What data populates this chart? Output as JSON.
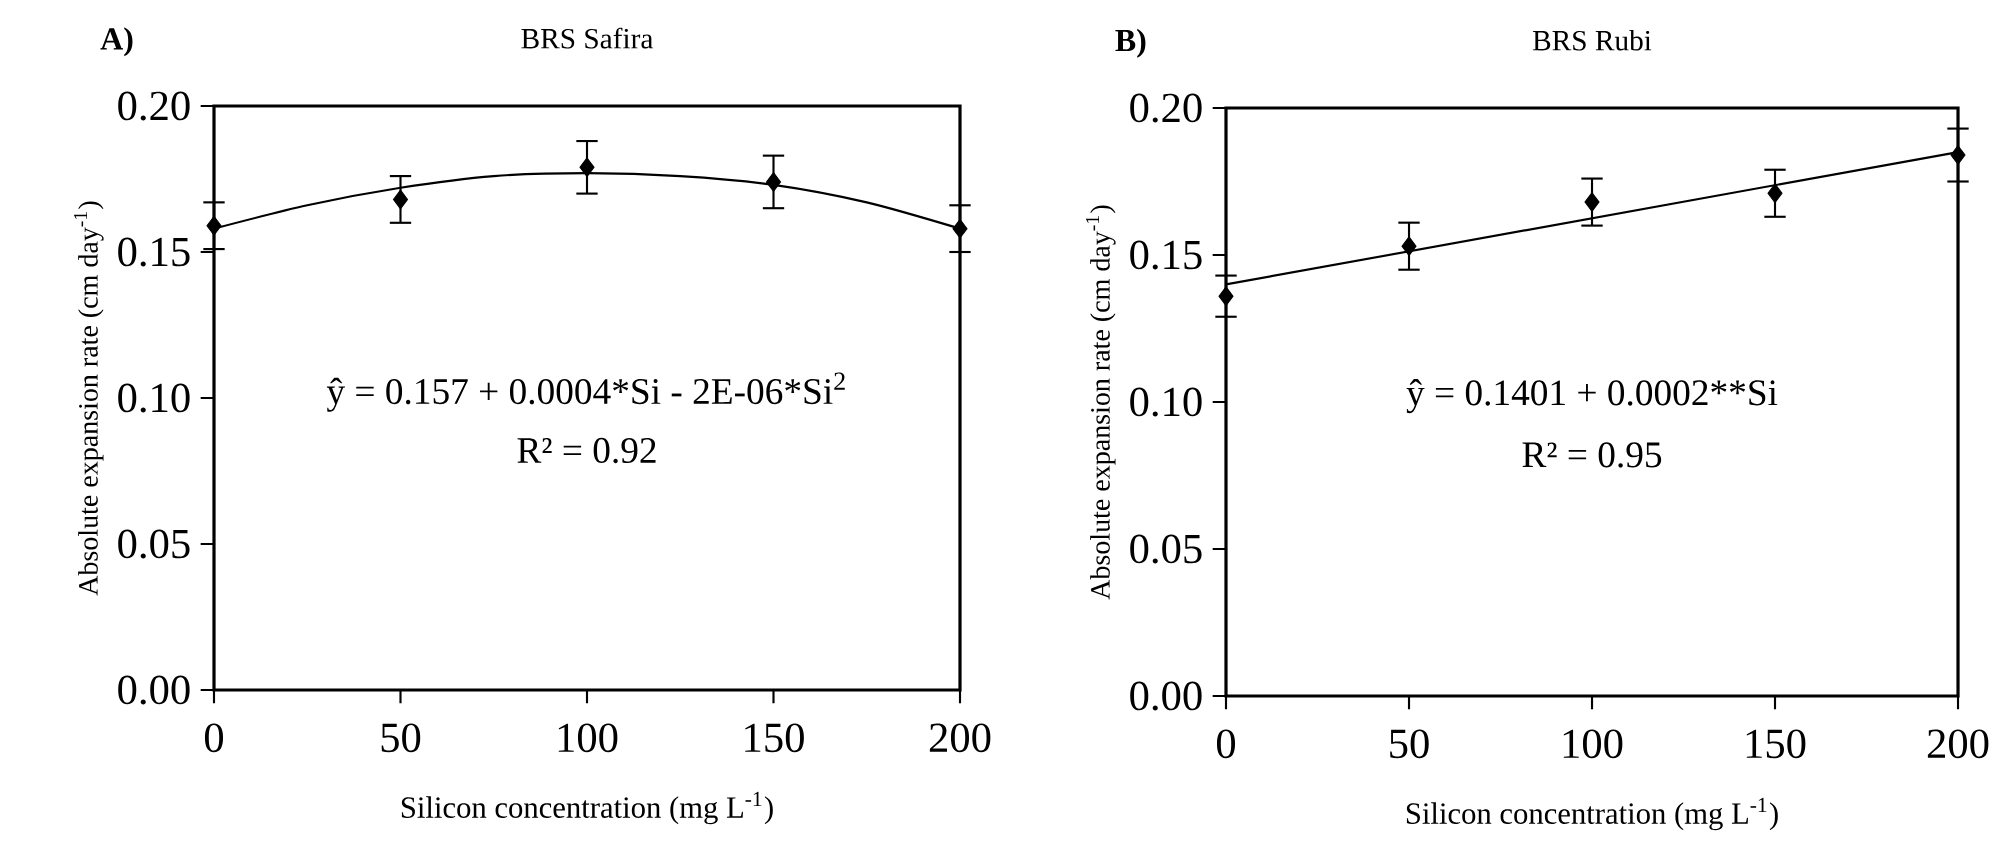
{
  "chart_data": [
    {
      "type": "scatter",
      "title": "BRS Safira",
      "xlabel": "Silicon concentration (mg L$^{-1}$)",
      "ylabel": "Absolute expansion rate (cm day$^{-1}$)",
      "annotations": [
        "A)",
        "ŷ = 0.157 + 0.0004*Si - 2E-06*Si$^{2}$",
        "R² = 0.92"
      ],
      "series": [
        {
          "color": "#000000",
          "x": [
            0,
            50,
            100,
            150,
            200
          ],
          "values": [
            0.159,
            0.168,
            0.179,
            0.174,
            0.158
          ],
          "errors": [
            0.008,
            0.008,
            0.009,
            0.009,
            0.008
          ]
        },
        {
          "type": "line",
          "marker": "none",
          "color": "#000000",
          "x": [
            0,
            25,
            50,
            75,
            100,
            125,
            150,
            175,
            200
          ],
          "values": [
            0.158,
            0.166,
            0.172,
            0.176,
            0.177,
            0.176,
            0.173,
            0.167,
            0.158
          ]
        }
      ],
      "marker": "diamond",
      "xlim": [
        0,
        200
      ],
      "ylim": [
        0,
        0.2
      ],
      "xticks": [
        0,
        50,
        100,
        150,
        200
      ],
      "yticks": [
        {
          "value": 0,
          "label": "0.00"
        },
        {
          "value": 0.05,
          "label": "0.05"
        },
        {
          "value": 0.1,
          "label": "0.10"
        },
        {
          "value": 0.15,
          "label": "0.15"
        },
        {
          "value": 0.2,
          "label": "0.20"
        }
      ]
    },
    {
      "type": "scatter",
      "title": "BRS Rubi",
      "xlabel": "Silicon concentration (mg L$^{-1}$)",
      "ylabel": "Absolute expansion rate (cm day$^{-1}$)",
      "annotations": [
        "B)",
        "ŷ = 0.1401 + 0.0002**Si",
        "R² = 0.95"
      ],
      "series": [
        {
          "color": "#000000",
          "x": [
            0,
            50,
            100,
            150,
            200
          ],
          "values": [
            0.136,
            0.153,
            0.168,
            0.171,
            0.184
          ],
          "errors": [
            0.007,
            0.008,
            0.008,
            0.008,
            0.009
          ]
        },
        {
          "type": "line",
          "marker": "none",
          "color": "#000000",
          "x": [
            0,
            200
          ],
          "values": [
            0.14,
            0.185
          ]
        }
      ],
      "marker": "diamond",
      "xlim": [
        0,
        200
      ],
      "ylim": [
        0,
        0.2
      ],
      "xticks": [
        0,
        50,
        100,
        150,
        200
      ],
      "yticks": [
        {
          "value": 0,
          "label": "0.00"
        },
        {
          "value": 0.05,
          "label": "0.05"
        },
        {
          "value": 0.1,
          "label": "0.10"
        },
        {
          "value": 0.15,
          "label": "0.15"
        },
        {
          "value": 0.2,
          "label": "0.20"
        }
      ]
    }
  ]
}
